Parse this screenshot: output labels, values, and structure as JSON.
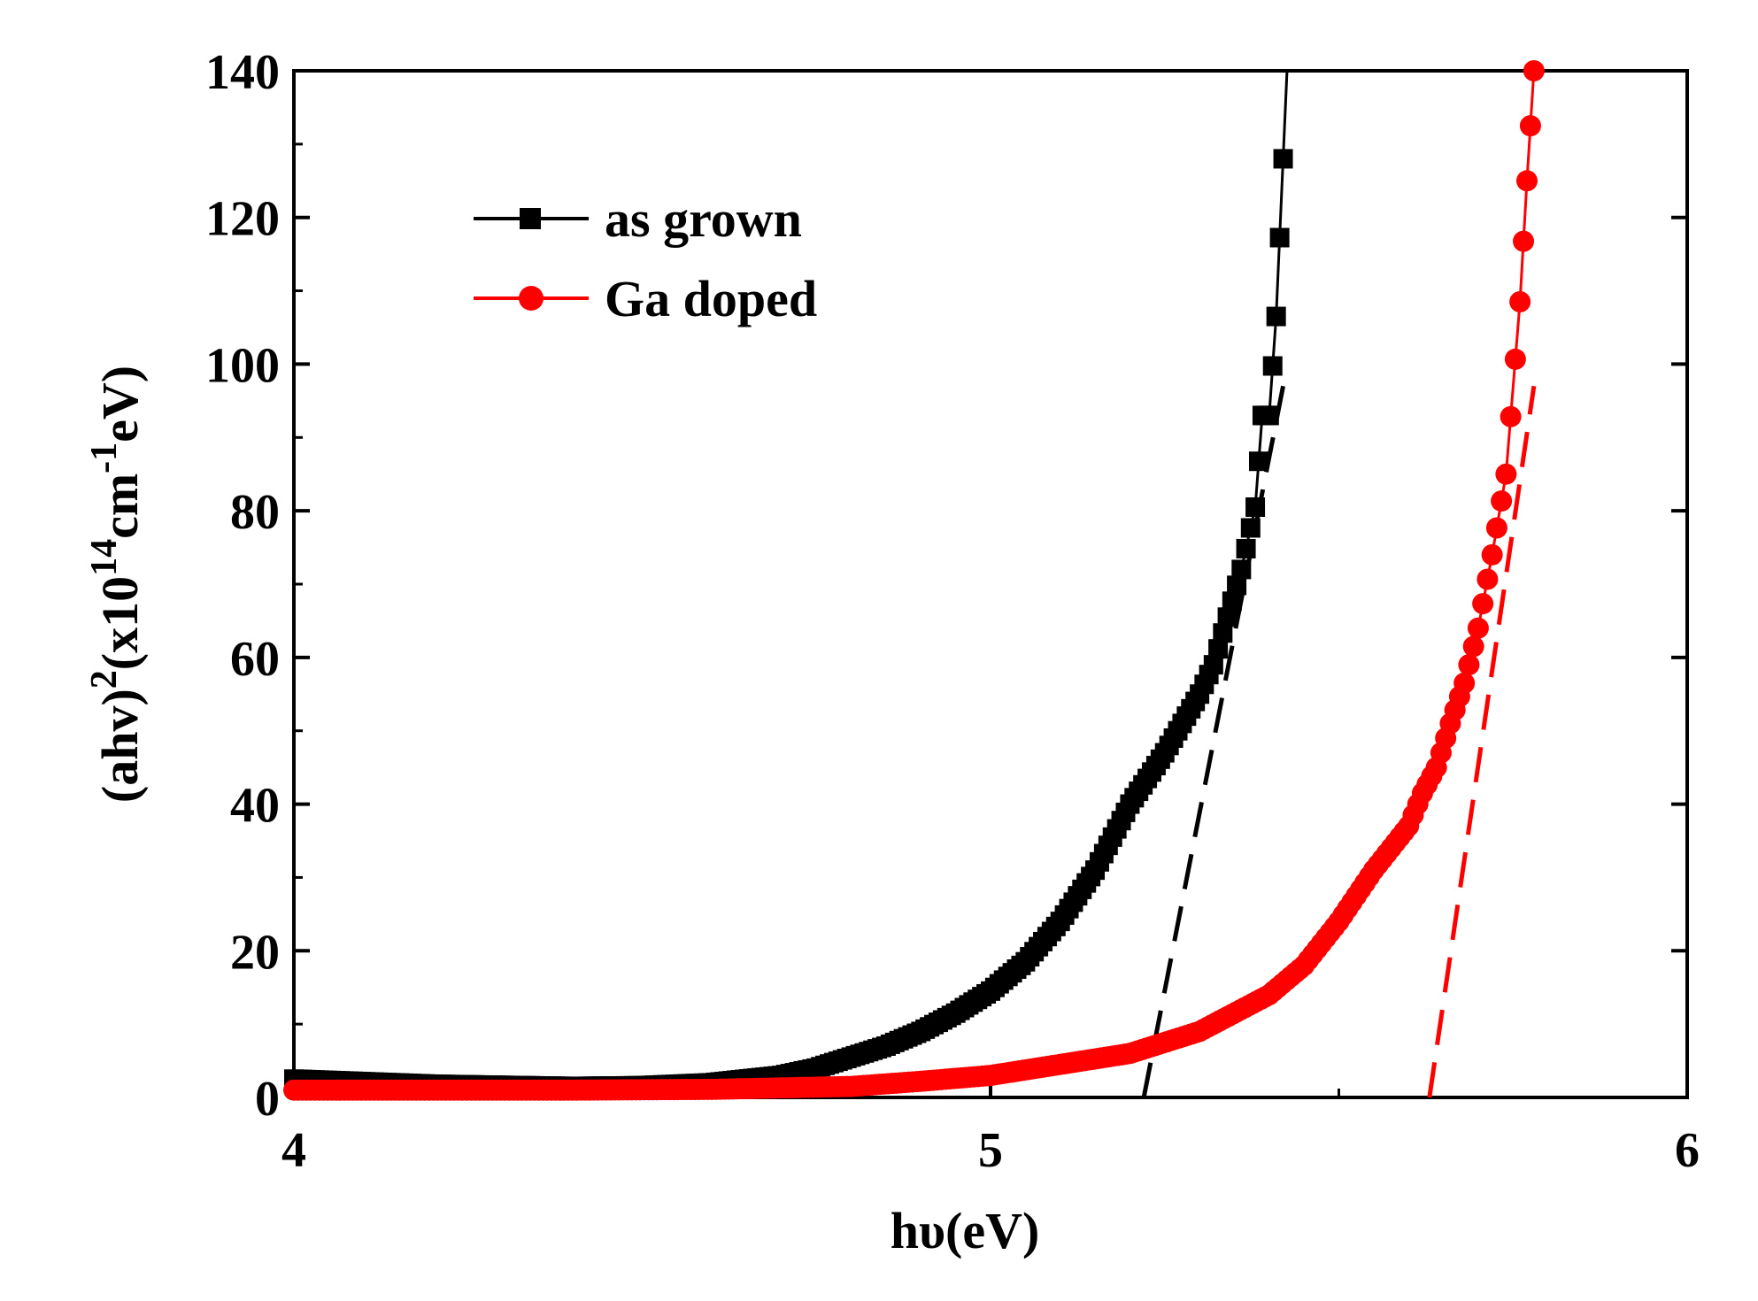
{
  "chart_data": {
    "type": "scatter",
    "title": "",
    "xlabel": "hυ(eV)",
    "ylabel_parts": {
      "base": "(ahv)",
      "sq": "2",
      "mid": "(x10",
      "exp1": "14",
      "cm": "cm",
      "exp2": "-1",
      "end": "eV)"
    },
    "xlim": [
      4,
      6
    ],
    "ylim": [
      0,
      140
    ],
    "x_ticks": [
      4,
      5,
      6
    ],
    "x_tick_labels": [
      "4",
      "5",
      "6"
    ],
    "y_ticks": [
      0,
      20,
      40,
      60,
      80,
      100,
      120,
      140
    ],
    "y_tick_labels": [
      "0",
      "20",
      "40",
      "60",
      "80",
      "100",
      "120",
      "140"
    ],
    "legend_position": "top-left",
    "series": [
      {
        "name": "as grown",
        "color": "#000000",
        "marker": "square",
        "x": [
          4.0,
          4.2,
          4.4,
          4.5,
          4.6,
          4.7,
          4.75,
          4.8,
          4.85,
          4.9,
          4.95,
          5.0,
          5.05,
          5.1,
          5.15,
          5.2,
          5.25,
          5.3,
          5.32,
          5.34,
          5.36,
          5.38,
          5.39,
          5.4,
          5.41,
          5.42
        ],
        "y": [
          2.5,
          1.8,
          1.5,
          1.6,
          2.0,
          3.0,
          4.0,
          5.5,
          7.0,
          9.0,
          11.5,
          14.5,
          18.5,
          24.0,
          31.0,
          40.0,
          47.0,
          55.0,
          59.0,
          65.5,
          72.0,
          80.5,
          93.0,
          93.0,
          106.5,
          128.0
        ]
      },
      {
        "name": "Ga doped",
        "color": "#ff0000",
        "marker": "circle",
        "x": [
          4.0,
          4.2,
          4.4,
          4.6,
          4.8,
          4.9,
          5.0,
          5.1,
          5.2,
          5.3,
          5.4,
          5.45,
          5.5,
          5.55,
          5.6,
          5.62,
          5.64,
          5.66,
          5.68,
          5.7,
          5.72,
          5.74,
          5.76,
          5.77,
          5.78
        ],
        "y": [
          1.0,
          1.0,
          1.0,
          1.1,
          1.5,
          2.2,
          3.0,
          4.5,
          6.0,
          9.0,
          14.0,
          18.0,
          24.0,
          31.0,
          37.0,
          41.5,
          45.0,
          51.0,
          56.5,
          64.0,
          74.0,
          85.0,
          108.5,
          125.0,
          140.0
        ]
      }
    ],
    "fit_lines": [
      {
        "series": "as grown",
        "color": "#000000",
        "x": [
          5.22,
          5.42
        ],
        "y": [
          0,
          97
        ]
      },
      {
        "series": "Ga doped",
        "color": "#ff0000",
        "x": [
          5.63,
          5.78
        ],
        "y": [
          0,
          97
        ]
      }
    ]
  }
}
